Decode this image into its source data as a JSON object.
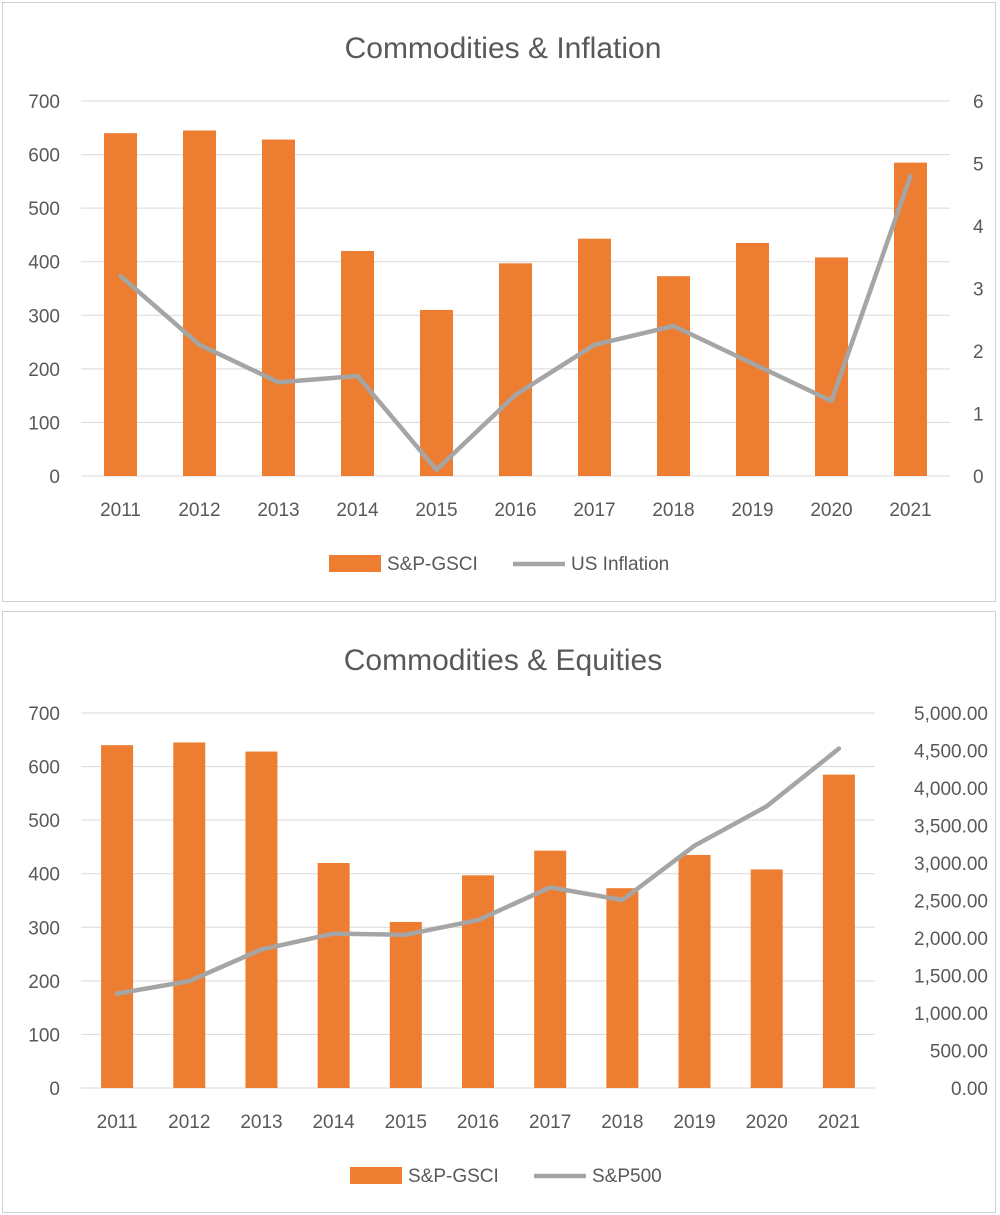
{
  "colors": {
    "bar": "#ed7d31",
    "line": "#a5a5a5",
    "grid": "#d9d9d9",
    "text": "#595959"
  },
  "chart_data": [
    {
      "type": "bar",
      "title": "Commodities & Inflation",
      "categories": [
        "2011",
        "2012",
        "2013",
        "2014",
        "2015",
        "2016",
        "2017",
        "2018",
        "2019",
        "2020",
        "2021"
      ],
      "series": [
        {
          "name": "S&P-GSCI",
          "kind": "bar",
          "axis": "left",
          "values": [
            640,
            645,
            628,
            420,
            310,
            397,
            443,
            373,
            435,
            408,
            585
          ]
        },
        {
          "name": "US Inflation",
          "kind": "line",
          "axis": "right",
          "values": [
            3.2,
            2.1,
            1.5,
            1.6,
            0.1,
            1.3,
            2.1,
            2.4,
            1.8,
            1.2,
            4.8
          ]
        }
      ],
      "ylim_left": [
        0,
        700
      ],
      "yticks_left": [
        "0",
        "100",
        "200",
        "300",
        "400",
        "500",
        "600",
        "700"
      ],
      "ylim_right": [
        0,
        6
      ],
      "yticks_right": [
        "0",
        "1",
        "2",
        "3",
        "4",
        "5",
        "6"
      ],
      "legend_position": "bottom",
      "grid": true
    },
    {
      "type": "bar",
      "title": "Commodities & Equities",
      "categories": [
        "2011",
        "2012",
        "2013",
        "2014",
        "2015",
        "2016",
        "2017",
        "2018",
        "2019",
        "2020",
        "2021"
      ],
      "series": [
        {
          "name": "S&P-GSCI",
          "kind": "bar",
          "axis": "left",
          "values": [
            640,
            645,
            628,
            420,
            310,
            397,
            443,
            373,
            435,
            408,
            585
          ]
        },
        {
          "name": "S&P500",
          "kind": "line",
          "axis": "right",
          "values": [
            1258,
            1426,
            1848,
            2059,
            2044,
            2239,
            2674,
            2507,
            3231,
            3756,
            4525
          ]
        }
      ],
      "ylim_left": [
        0,
        700
      ],
      "yticks_left": [
        "0",
        "100",
        "200",
        "300",
        "400",
        "500",
        "600",
        "700"
      ],
      "ylim_right": [
        0,
        5000
      ],
      "yticks_right": [
        "0.00",
        "500.00",
        "1,000.00",
        "1,500.00",
        "2,000.00",
        "2,500.00",
        "3,000.00",
        "3,500.00",
        "4,000.00",
        "4,500.00",
        "5,000.00"
      ],
      "legend_position": "bottom",
      "grid": true
    }
  ]
}
